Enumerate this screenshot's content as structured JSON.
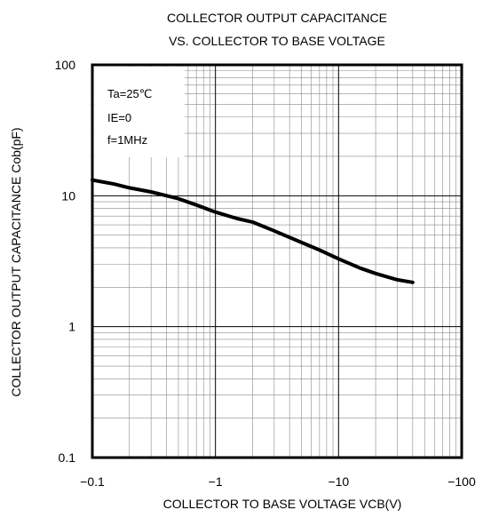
{
  "chart_data": {
    "type": "line",
    "title": "COLLECTOR OUTPUT CAPACITANCE",
    "subtitle": "VS. COLLECTOR TO BASE VOLTAGE",
    "xlabel": "COLLECTOR TO BASE VOLTAGE VCB(V)",
    "ylabel": "COLLECTOR OUTPUT CAPACITANCE Cob(pF)",
    "x_scale": "log",
    "y_scale": "log",
    "xlim": [
      -0.1,
      -100
    ],
    "ylim": [
      0.1,
      100
    ],
    "x_ticks": [
      {
        "value": -0.1,
        "label": "−0.1"
      },
      {
        "value": -1,
        "label": "−1"
      },
      {
        "value": -10,
        "label": "−10"
      },
      {
        "value": -100,
        "label": "−100"
      }
    ],
    "y_ticks": [
      {
        "value": 0.1,
        "label": "0.1"
      },
      {
        "value": 1,
        "label": "1"
      },
      {
        "value": 10,
        "label": "10"
      },
      {
        "value": 100,
        "label": "100"
      }
    ],
    "grid": true,
    "annotations": [
      "Ta=25℃",
      "IE=0",
      "f=1MHz"
    ],
    "series": [
      {
        "x": [
          -0.1,
          -0.15,
          -0.2,
          -0.3,
          -0.5,
          -0.7,
          -1,
          -1.5,
          -2,
          -3,
          -5,
          -7,
          -10,
          -15,
          -20,
          -30,
          -40
        ],
        "y": [
          13.2,
          12.3,
          11.5,
          10.7,
          9.5,
          8.5,
          7.5,
          6.7,
          6.3,
          5.4,
          4.4,
          3.85,
          3.3,
          2.8,
          2.55,
          2.28,
          2.18
        ]
      }
    ]
  }
}
